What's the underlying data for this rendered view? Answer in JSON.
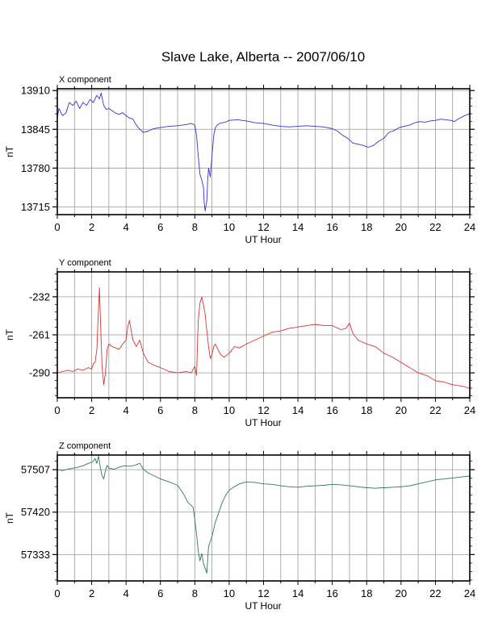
{
  "title": "Slave Lake, Alberta -- 2007/06/10",
  "chart_data": [
    {
      "type": "line",
      "panel_label": "X component",
      "xlabel": "UT Hour",
      "ylabel": "nT",
      "xlim": [
        0,
        24
      ],
      "ylim": [
        13702,
        13913
      ],
      "xticks": [
        0,
        2,
        4,
        6,
        8,
        10,
        12,
        14,
        16,
        18,
        20,
        22,
        24
      ],
      "yticks": [
        13715,
        13780,
        13845,
        13910
      ],
      "grid": true,
      "color": "#3333dd",
      "series": [
        {
          "x": [
            0,
            0.1,
            0.3,
            0.5,
            0.7,
            0.9,
            1.1,
            1.3,
            1.5,
            1.7,
            1.9,
            2.1,
            2.3,
            2.45,
            2.55,
            2.7,
            2.85,
            3.0,
            3.2,
            3.4,
            3.6,
            3.8,
            4.0,
            4.2,
            4.4,
            4.6,
            4.8,
            5.0,
            5.3,
            5.6,
            6.0,
            6.5,
            7.0,
            7.5,
            7.8,
            8.0,
            8.1,
            8.2,
            8.3,
            8.4,
            8.5,
            8.55,
            8.6,
            8.7,
            8.75,
            8.8,
            8.9,
            9.0,
            9.1,
            9.2,
            9.3,
            9.45,
            9.6,
            9.8,
            10.0,
            10.5,
            11.0,
            11.5,
            12.0,
            12.5,
            13.0,
            13.5,
            14.0,
            14.5,
            15.0,
            15.5,
            16.0,
            16.3,
            16.6,
            16.9,
            17.2,
            17.5,
            17.8,
            18.1,
            18.4,
            18.7,
            19.0,
            19.3,
            19.6,
            19.9,
            20.2,
            20.5,
            20.8,
            21.1,
            21.4,
            21.7,
            22.0,
            22.3,
            22.6,
            22.9,
            23.1,
            23.3,
            23.5,
            23.7,
            23.9,
            24.0
          ],
          "y": [
            13865,
            13880,
            13868,
            13872,
            13890,
            13885,
            13892,
            13880,
            13890,
            13885,
            13895,
            13890,
            13902,
            13896,
            13906,
            13885,
            13878,
            13880,
            13876,
            13872,
            13870,
            13873,
            13868,
            13864,
            13862,
            13852,
            13845,
            13840,
            13842,
            13846,
            13848,
            13850,
            13851,
            13853,
            13855,
            13852,
            13835,
            13800,
            13770,
            13760,
            13748,
            13722,
            13708,
            13725,
            13760,
            13780,
            13765,
            13800,
            13835,
            13848,
            13852,
            13855,
            13856,
            13857,
            13860,
            13861,
            13859,
            13856,
            13855,
            13852,
            13850,
            13849,
            13850,
            13851,
            13850,
            13849,
            13846,
            13842,
            13835,
            13830,
            13822,
            13820,
            13818,
            13815,
            13818,
            13825,
            13830,
            13840,
            13843,
            13848,
            13850,
            13852,
            13856,
            13858,
            13857,
            13859,
            13860,
            13862,
            13861,
            13860,
            13858,
            13862,
            13865,
            13868,
            13870,
            13872
          ]
        }
      ]
    },
    {
      "type": "line",
      "panel_label": "Y component",
      "xlabel": "UT Hour",
      "ylabel": "nT",
      "xlim": [
        0,
        24
      ],
      "ylim": [
        -309,
        -213
      ],
      "xticks": [
        0,
        2,
        4,
        6,
        8,
        10,
        12,
        14,
        16,
        18,
        20,
        22,
        24
      ],
      "yticks": [
        -232,
        -261,
        -290
      ],
      "grid": true,
      "color": "#dd3333",
      "series": [
        {
          "x": [
            0,
            0.3,
            0.6,
            0.9,
            1.2,
            1.5,
            1.8,
            2.0,
            2.1,
            2.2,
            2.3,
            2.4,
            2.45,
            2.5,
            2.6,
            2.7,
            2.8,
            2.9,
            3.0,
            3.2,
            3.4,
            3.6,
            3.8,
            4.0,
            4.1,
            4.2,
            4.3,
            4.4,
            4.6,
            4.8,
            5.0,
            5.3,
            5.6,
            6.0,
            6.5,
            7.0,
            7.5,
            7.8,
            8.0,
            8.1,
            8.2,
            8.3,
            8.4,
            8.5,
            8.6,
            8.7,
            8.8,
            8.9,
            9.0,
            9.1,
            9.2,
            9.3,
            9.5,
            9.7,
            10.0,
            10.3,
            10.6,
            11.0,
            11.5,
            12.0,
            12.5,
            13.0,
            13.5,
            14.0,
            14.5,
            15.0,
            15.5,
            16.0,
            16.5,
            16.8,
            17.0,
            17.2,
            17.5,
            18.0,
            18.5,
            19.0,
            19.5,
            20.0,
            20.5,
            21.0,
            21.5,
            22.0,
            22.5,
            23.0,
            23.5,
            23.8,
            24.0
          ],
          "y": [
            -290,
            -289,
            -288,
            -289,
            -287,
            -288,
            -286,
            -287,
            -283,
            -282,
            -272,
            -240,
            -225,
            -245,
            -285,
            -299,
            -290,
            -272,
            -268,
            -270,
            -271,
            -272,
            -268,
            -265,
            -255,
            -250,
            -258,
            -265,
            -270,
            -265,
            -275,
            -282,
            -284,
            -286,
            -289,
            -290,
            -289,
            -290,
            -285,
            -292,
            -250,
            -237,
            -232,
            -238,
            -245,
            -258,
            -270,
            -279,
            -276,
            -270,
            -268,
            -271,
            -276,
            -278,
            -275,
            -270,
            -271,
            -268,
            -265,
            -262,
            -259,
            -258,
            -256,
            -255,
            -254,
            -253,
            -254,
            -254,
            -257,
            -256,
            -252,
            -260,
            -265,
            -268,
            -270,
            -275,
            -278,
            -282,
            -286,
            -290,
            -292,
            -296,
            -297,
            -299,
            -300,
            -301,
            -302
          ]
        }
      ]
    },
    {
      "type": "line",
      "panel_label": "Z component",
      "xlabel": "UT Hour",
      "ylabel": "nT",
      "xlim": [
        0,
        24
      ],
      "ylim": [
        57279,
        57537
      ],
      "xticks": [
        0,
        2,
        4,
        6,
        8,
        10,
        12,
        14,
        16,
        18,
        20,
        22,
        24
      ],
      "yticks": [
        57333,
        57420,
        57507
      ],
      "grid": true,
      "color": "#2f7a50",
      "series": [
        {
          "x": [
            0,
            0.3,
            0.6,
            0.9,
            1.2,
            1.5,
            1.8,
            2.0,
            2.1,
            2.2,
            2.3,
            2.4,
            2.5,
            2.6,
            2.7,
            2.8,
            2.9,
            3.0,
            3.3,
            3.6,
            3.9,
            4.2,
            4.5,
            4.8,
            5.0,
            5.3,
            5.6,
            6.0,
            6.5,
            7.0,
            7.3,
            7.6,
            7.9,
            8.0,
            8.1,
            8.2,
            8.3,
            8.4,
            8.5,
            8.6,
            8.7,
            8.8,
            8.9,
            9.0,
            9.2,
            9.4,
            9.6,
            9.8,
            10.0,
            10.3,
            10.6,
            11.0,
            11.5,
            12.0,
            12.5,
            13.0,
            13.5,
            14.0,
            14.5,
            15.0,
            15.5,
            16.0,
            16.5,
            17.0,
            17.5,
            18.0,
            18.5,
            19.0,
            19.5,
            20.0,
            20.5,
            21.0,
            21.5,
            22.0,
            22.5,
            23.0,
            23.5,
            24.0
          ],
          "y": [
            57507,
            57505,
            57508,
            57510,
            57512,
            57515,
            57520,
            57522,
            57525,
            57530,
            57520,
            57535,
            57512,
            57495,
            57488,
            57505,
            57516,
            57510,
            57508,
            57512,
            57515,
            57514,
            57516,
            57520,
            57508,
            57500,
            57495,
            57488,
            57482,
            57475,
            57460,
            57440,
            57430,
            57405,
            57375,
            57340,
            57320,
            57335,
            57315,
            57305,
            57295,
            57350,
            57360,
            57370,
            57400,
            57420,
            57440,
            57455,
            57465,
            57472,
            57478,
            57482,
            57481,
            57478,
            57477,
            57474,
            57472,
            57471,
            57473,
            57474,
            57475,
            57477,
            57476,
            57474,
            57472,
            57470,
            57469,
            57470,
            57471,
            57472,
            57474,
            57478,
            57482,
            57486,
            57488,
            57490,
            57492,
            57494
          ]
        }
      ]
    }
  ]
}
